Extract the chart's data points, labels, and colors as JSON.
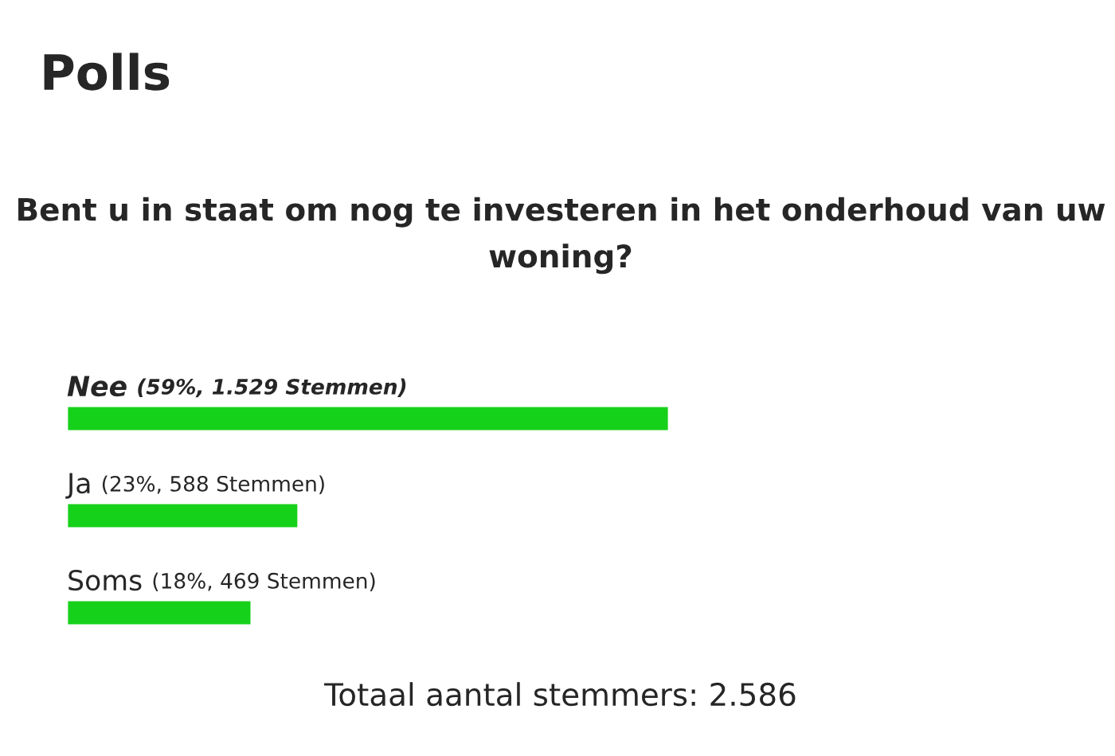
{
  "chart_data": {
    "type": "bar",
    "orientation": "horizontal",
    "title": "Polls",
    "subtitle": "Bent u in staat om nog te investeren in het onderhoud van uw woning?",
    "categories": [
      "Nee",
      "Ja",
      "Soms"
    ],
    "values": [
      1529,
      588,
      469
    ],
    "value_labels": [
      "(59%, 1.529 Stemmen)",
      "(23%, 588 Stemmen)",
      "(18%, 469 Stemmen)"
    ],
    "color": "#16d11a",
    "annotations": [
      "Totaal aantal stemmers: 2.586"
    ]
  }
}
